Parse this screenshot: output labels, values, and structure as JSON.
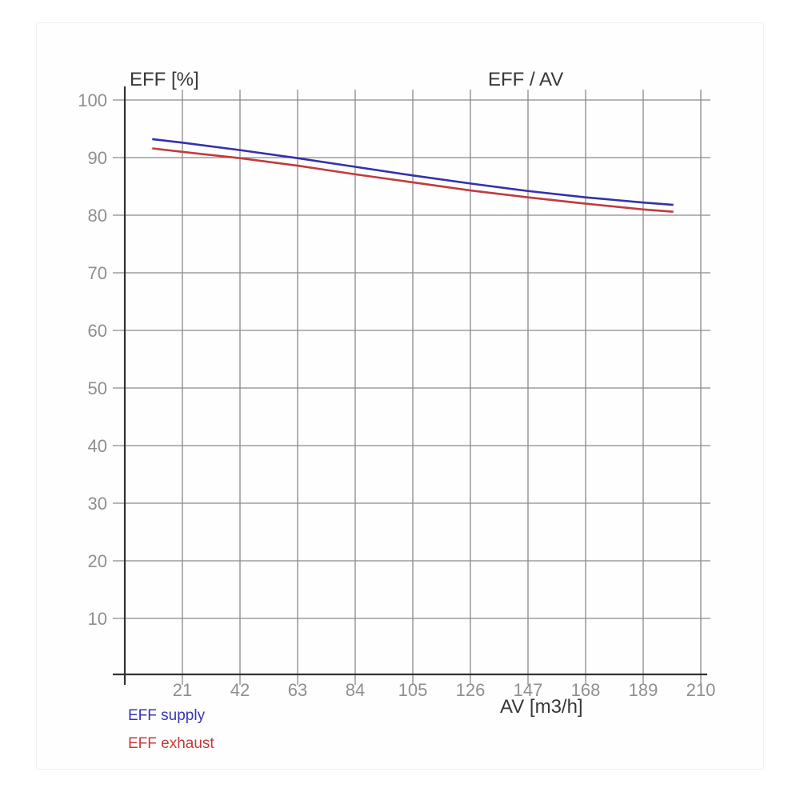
{
  "header": {
    "title": "EFF / AV",
    "y_axis_title": "EFF [%]",
    "x_axis_title": "AV [m3/h]"
  },
  "legend": {
    "items": [
      {
        "label": "EFF supply",
        "color": "#3535b8"
      },
      {
        "label": "EFF exhaust",
        "color": "#c63a3a"
      }
    ]
  },
  "colors": {
    "grid": "#8a8a8a",
    "axis": "#333333",
    "tick_label": "#8f8f8f",
    "label_text": "#383838",
    "supply_line": "#3232aa",
    "exhaust_line": "#c03c3c",
    "background": "#ffffff"
  },
  "chart_data": {
    "type": "line",
    "title": "EFF / AV",
    "xlabel": "AV [m3/h]",
    "ylabel": "EFF [%]",
    "xlim": [
      0,
      210
    ],
    "ylim": [
      0,
      100
    ],
    "x_ticks": [
      21,
      42,
      63,
      84,
      105,
      126,
      147,
      168,
      189,
      210
    ],
    "y_ticks": [
      10,
      20,
      30,
      40,
      50,
      60,
      70,
      80,
      90,
      100
    ],
    "grid": true,
    "legend_position": "bottom-left",
    "x": [
      10,
      21,
      42,
      63,
      84,
      105,
      126,
      147,
      168,
      189,
      200
    ],
    "series": [
      {
        "name": "EFF supply",
        "color": "#3232aa",
        "values": [
          93.2,
          92.6,
          91.3,
          89.9,
          88.4,
          86.9,
          85.5,
          84.2,
          83.1,
          82.2,
          81.8
        ]
      },
      {
        "name": "EFF exhaust",
        "color": "#c03c3c",
        "values": [
          91.6,
          91.0,
          89.9,
          88.6,
          87.1,
          85.7,
          84.3,
          83.1,
          82.0,
          81.0,
          80.6
        ]
      }
    ]
  }
}
